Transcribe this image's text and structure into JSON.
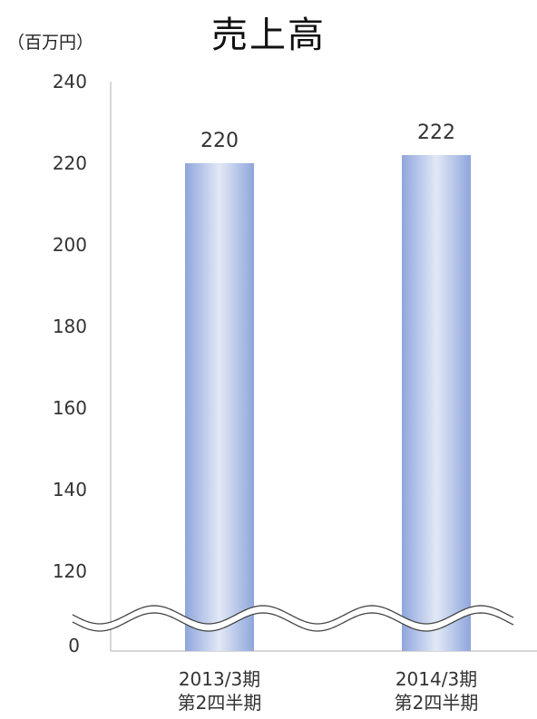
{
  "chart_data": {
    "type": "bar",
    "title": "売上高",
    "unit_label": "（百万円）",
    "categories": [
      [
        "2013/3期",
        "第2四半期"
      ],
      [
        "2014/3期",
        "第2四半期"
      ]
    ],
    "values": [
      220,
      222
    ],
    "yticks": [
      240,
      220,
      200,
      180,
      160,
      140,
      120,
      0
    ],
    "ylim": [
      0,
      240
    ],
    "axis_break": "between 0 and 120",
    "grid": false,
    "legend": "none",
    "bar_color_edge": "#8fa6dc",
    "bar_color_center": "#e2e8f6"
  }
}
